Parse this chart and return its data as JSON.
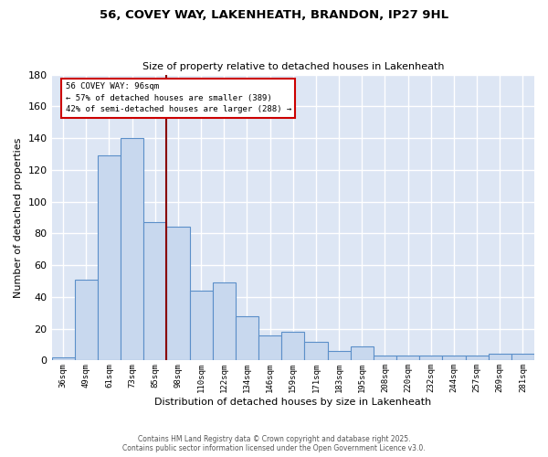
{
  "title_line1": "56, COVEY WAY, LAKENHEATH, BRANDON, IP27 9HL",
  "title_line2": "Size of property relative to detached houses in Lakenheath",
  "xlabel": "Distribution of detached houses by size in Lakenheath",
  "ylabel": "Number of detached properties",
  "categories": [
    "36sqm",
    "49sqm",
    "61sqm",
    "73sqm",
    "85sqm",
    "98sqm",
    "110sqm",
    "122sqm",
    "134sqm",
    "146sqm",
    "159sqm",
    "171sqm",
    "183sqm",
    "195sqm",
    "208sqm",
    "220sqm",
    "232sqm",
    "244sqm",
    "257sqm",
    "269sqm",
    "281sqm"
  ],
  "values": [
    2,
    51,
    129,
    140,
    87,
    84,
    44,
    49,
    28,
    16,
    18,
    12,
    6,
    9,
    3,
    3,
    3,
    3,
    3,
    4,
    4
  ],
  "bar_color": "#c8d8ee",
  "bar_edge_color": "#5b8fc9",
  "red_line_x": 4.5,
  "annotation_title": "56 COVEY WAY: 96sqm",
  "annotation_line1": "← 57% of detached houses are smaller (389)",
  "annotation_line2": "42% of semi-detached houses are larger (288) →",
  "annotation_box_color": "#ffffff",
  "annotation_box_edge": "#cc0000",
  "vline_color": "#880000",
  "bg_color": "#dde6f4",
  "grid_color": "#ffffff",
  "ylim": [
    0,
    180
  ],
  "yticks": [
    0,
    20,
    40,
    60,
    80,
    100,
    120,
    140,
    160,
    180
  ],
  "fig_bg": "#ffffff",
  "footer_line1": "Contains HM Land Registry data © Crown copyright and database right 2025.",
  "footer_line2": "Contains public sector information licensed under the Open Government Licence v3.0."
}
